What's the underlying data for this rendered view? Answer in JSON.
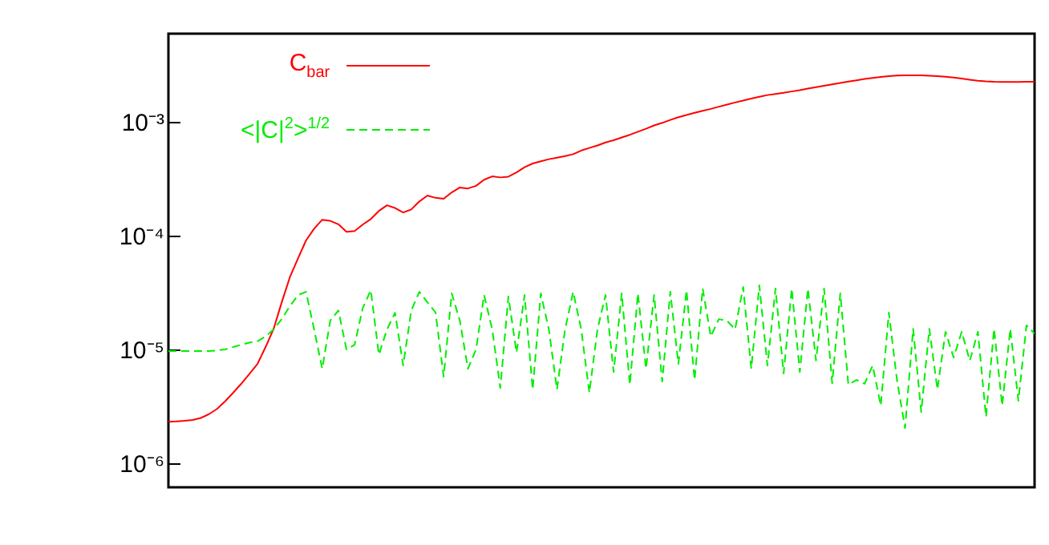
{
  "chart_data": {
    "type": "line",
    "legend": "top",
    "tick_labels": "y",
    "log": "y",
    "grid": false,
    "categories": [
      null,
      null,
      null,
      null,
      null,
      null,
      null,
      null,
      null,
      null,
      null,
      null,
      null,
      null,
      null,
      null,
      null,
      null,
      null,
      null,
      null,
      null,
      null,
      null,
      null,
      null,
      null,
      null,
      null,
      null,
      null,
      null,
      null,
      null,
      null,
      null,
      null,
      null,
      null,
      null,
      null,
      null,
      null,
      null,
      null,
      null,
      null,
      null,
      null,
      null,
      null,
      null,
      null,
      null,
      null,
      null,
      null,
      null,
      null,
      null,
      null,
      null,
      null,
      null,
      null,
      null,
      null,
      null,
      null,
      null,
      null,
      null,
      null,
      null,
      null,
      null,
      null,
      null,
      null,
      null,
      null,
      null,
      null,
      null,
      null,
      null,
      null,
      null,
      null,
      null,
      null,
      null,
      null,
      null,
      null,
      null,
      null,
      null,
      null,
      null,
      null,
      null,
      null,
      null,
      null,
      null,
      null,
      null
    ],
    "ylim": [
      6.15e-07,
      0.00596
    ],
    "yticks": [
      {
        "value": 1e-06,
        "label": "10⁻⁶"
      },
      {
        "value": 1e-05,
        "label": "10⁻⁵"
      },
      {
        "value": 0.0001,
        "label": "10⁻⁴"
      },
      {
        "value": 0.001,
        "label": "10⁻³"
      }
    ],
    "series": [
      {
        "name": "C$_{bar}$",
        "color": "#ff0000",
        "line_style": "solid",
        "values": [
          2.32e-06,
          2.33e-06,
          2.36e-06,
          2.4e-06,
          2.5e-06,
          2.7e-06,
          3e-06,
          3.5e-06,
          4.17e-06,
          5e-06,
          6.1e-06,
          7.46e-06,
          1.05e-05,
          1.52e-05,
          2.6e-05,
          4.31e-05,
          6.3e-05,
          9.08e-05,
          0.000115,
          0.000138,
          0.000135,
          0.000126,
          0.000108,
          0.00011,
          0.000125,
          0.00014,
          0.000165,
          0.000185,
          0.000175,
          0.00016,
          0.00017,
          0.0002,
          0.000225,
          0.000215,
          0.000211,
          0.00024,
          0.000265,
          0.00026,
          0.000274,
          0.00031,
          0.000332,
          0.000325,
          0.00033,
          0.00036,
          0.0004,
          0.000431,
          0.00045,
          0.00047,
          0.000485,
          0.0005,
          0.00052,
          0.00056,
          0.00059,
          0.00062,
          0.00066,
          0.00069,
          0.00073,
          0.00077,
          0.00082,
          0.00087,
          0.00093,
          0.00098,
          0.00104,
          0.0011,
          0.00115,
          0.0012,
          0.00125,
          0.0013,
          0.00136,
          0.00142,
          0.00148,
          0.00154,
          0.0016,
          0.00166,
          0.00172,
          0.00176,
          0.0018,
          0.00185,
          0.0019,
          0.00196,
          0.00202,
          0.00208,
          0.00214,
          0.0022,
          0.00226,
          0.00232,
          0.00238,
          0.00243,
          0.00248,
          0.00252,
          0.00255,
          0.00256,
          0.00256,
          0.00256,
          0.00254,
          0.00252,
          0.00249,
          0.00245,
          0.0024,
          0.00235,
          0.0023,
          0.00227,
          0.00225,
          0.00224,
          0.00224,
          0.00224,
          0.00225,
          0.00225
        ]
      },
      {
        "name": "<|C|$^{2}$>$^{1/2}$",
        "color": "#00ee00",
        "line_style": "dashed",
        "values": [
          9.7e-06,
          9.7e-06,
          9.7e-06,
          9.7e-06,
          9.7e-06,
          9.7e-06,
          9.8e-06,
          1e-05,
          1.05e-05,
          1.1e-05,
          1.15e-05,
          1.18e-05,
          1.3e-05,
          1.5e-05,
          1.85e-05,
          2.4e-05,
          3e-05,
          3.21e-05,
          1.5e-05,
          6.78e-06,
          1.8e-05,
          2.2e-05,
          1e-05,
          1.1e-05,
          2.3e-05,
          3.32e-05,
          9e-06,
          1.5e-05,
          2.1e-05,
          7.23e-06,
          2.2e-05,
          3.21e-05,
          2.6e-05,
          2.11e-05,
          5.77e-06,
          3.11e-05,
          1.79e-05,
          6.78e-06,
          1e-05,
          3.01e-05,
          1.5e-05,
          4.59e-06,
          2.92e-05,
          9.4e-06,
          3.01e-05,
          4.45e-06,
          3.11e-05,
          1.5e-05,
          4.45e-06,
          1.5e-05,
          3.21e-05,
          1.5e-05,
          4.17e-06,
          1.5e-05,
          3.01e-05,
          6.35e-06,
          3.11e-05,
          4.9e-06,
          3.11e-05,
          6.78e-06,
          3.01e-05,
          5.23e-06,
          3.21e-05,
          7.46e-06,
          3.32e-05,
          5.4e-06,
          3.43e-05,
          1.3e-05,
          1.85e-05,
          1.79e-05,
          1.5e-05,
          3.54e-05,
          6.78e-06,
          3.66e-05,
          7.23e-06,
          3.43e-05,
          6.15e-06,
          3.43e-05,
          6.35e-06,
          3.43e-05,
          8e-06,
          3.43e-05,
          5.06e-06,
          3.11e-05,
          4.9e-06,
          5.4e-06,
          5e-06,
          7.23e-06,
          3.21e-06,
          2.11e-05,
          5.4e-06,
          2.04e-06,
          1.52e-05,
          2.82e-06,
          1.52e-05,
          4.45e-06,
          1.43e-05,
          8.5e-06,
          1.43e-05,
          7.96e-06,
          1.43e-05,
          2.56e-06,
          1.52e-05,
          3.21e-06,
          1.52e-05,
          3.54e-06,
          1.63e-05,
          1.38e-05
        ]
      }
    ]
  }
}
